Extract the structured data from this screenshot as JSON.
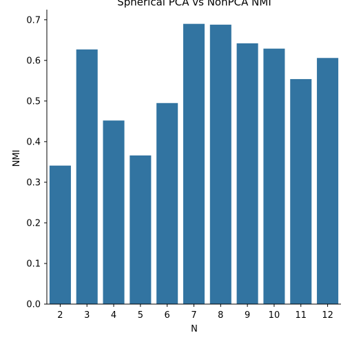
{
  "chart_data": {
    "type": "bar",
    "title": "Spherical PCA vs NonPCA NMI",
    "xlabel": "N",
    "ylabel": "NMI",
    "categories": [
      "2",
      "3",
      "4",
      "5",
      "6",
      "7",
      "8",
      "9",
      "10",
      "11",
      "12"
    ],
    "values": [
      0.341,
      0.627,
      0.452,
      0.366,
      0.495,
      0.69,
      0.688,
      0.642,
      0.629,
      0.554,
      0.606
    ],
    "ylim": [
      0,
      0.725
    ],
    "yticks": [
      0.0,
      0.1,
      0.2,
      0.3,
      0.4,
      0.5,
      0.6,
      0.7
    ],
    "ytick_labels": [
      "0.0",
      "0.1",
      "0.2",
      "0.3",
      "0.4",
      "0.5",
      "0.6",
      "0.7"
    ],
    "grid": false,
    "bar_color": "#3274a1"
  }
}
